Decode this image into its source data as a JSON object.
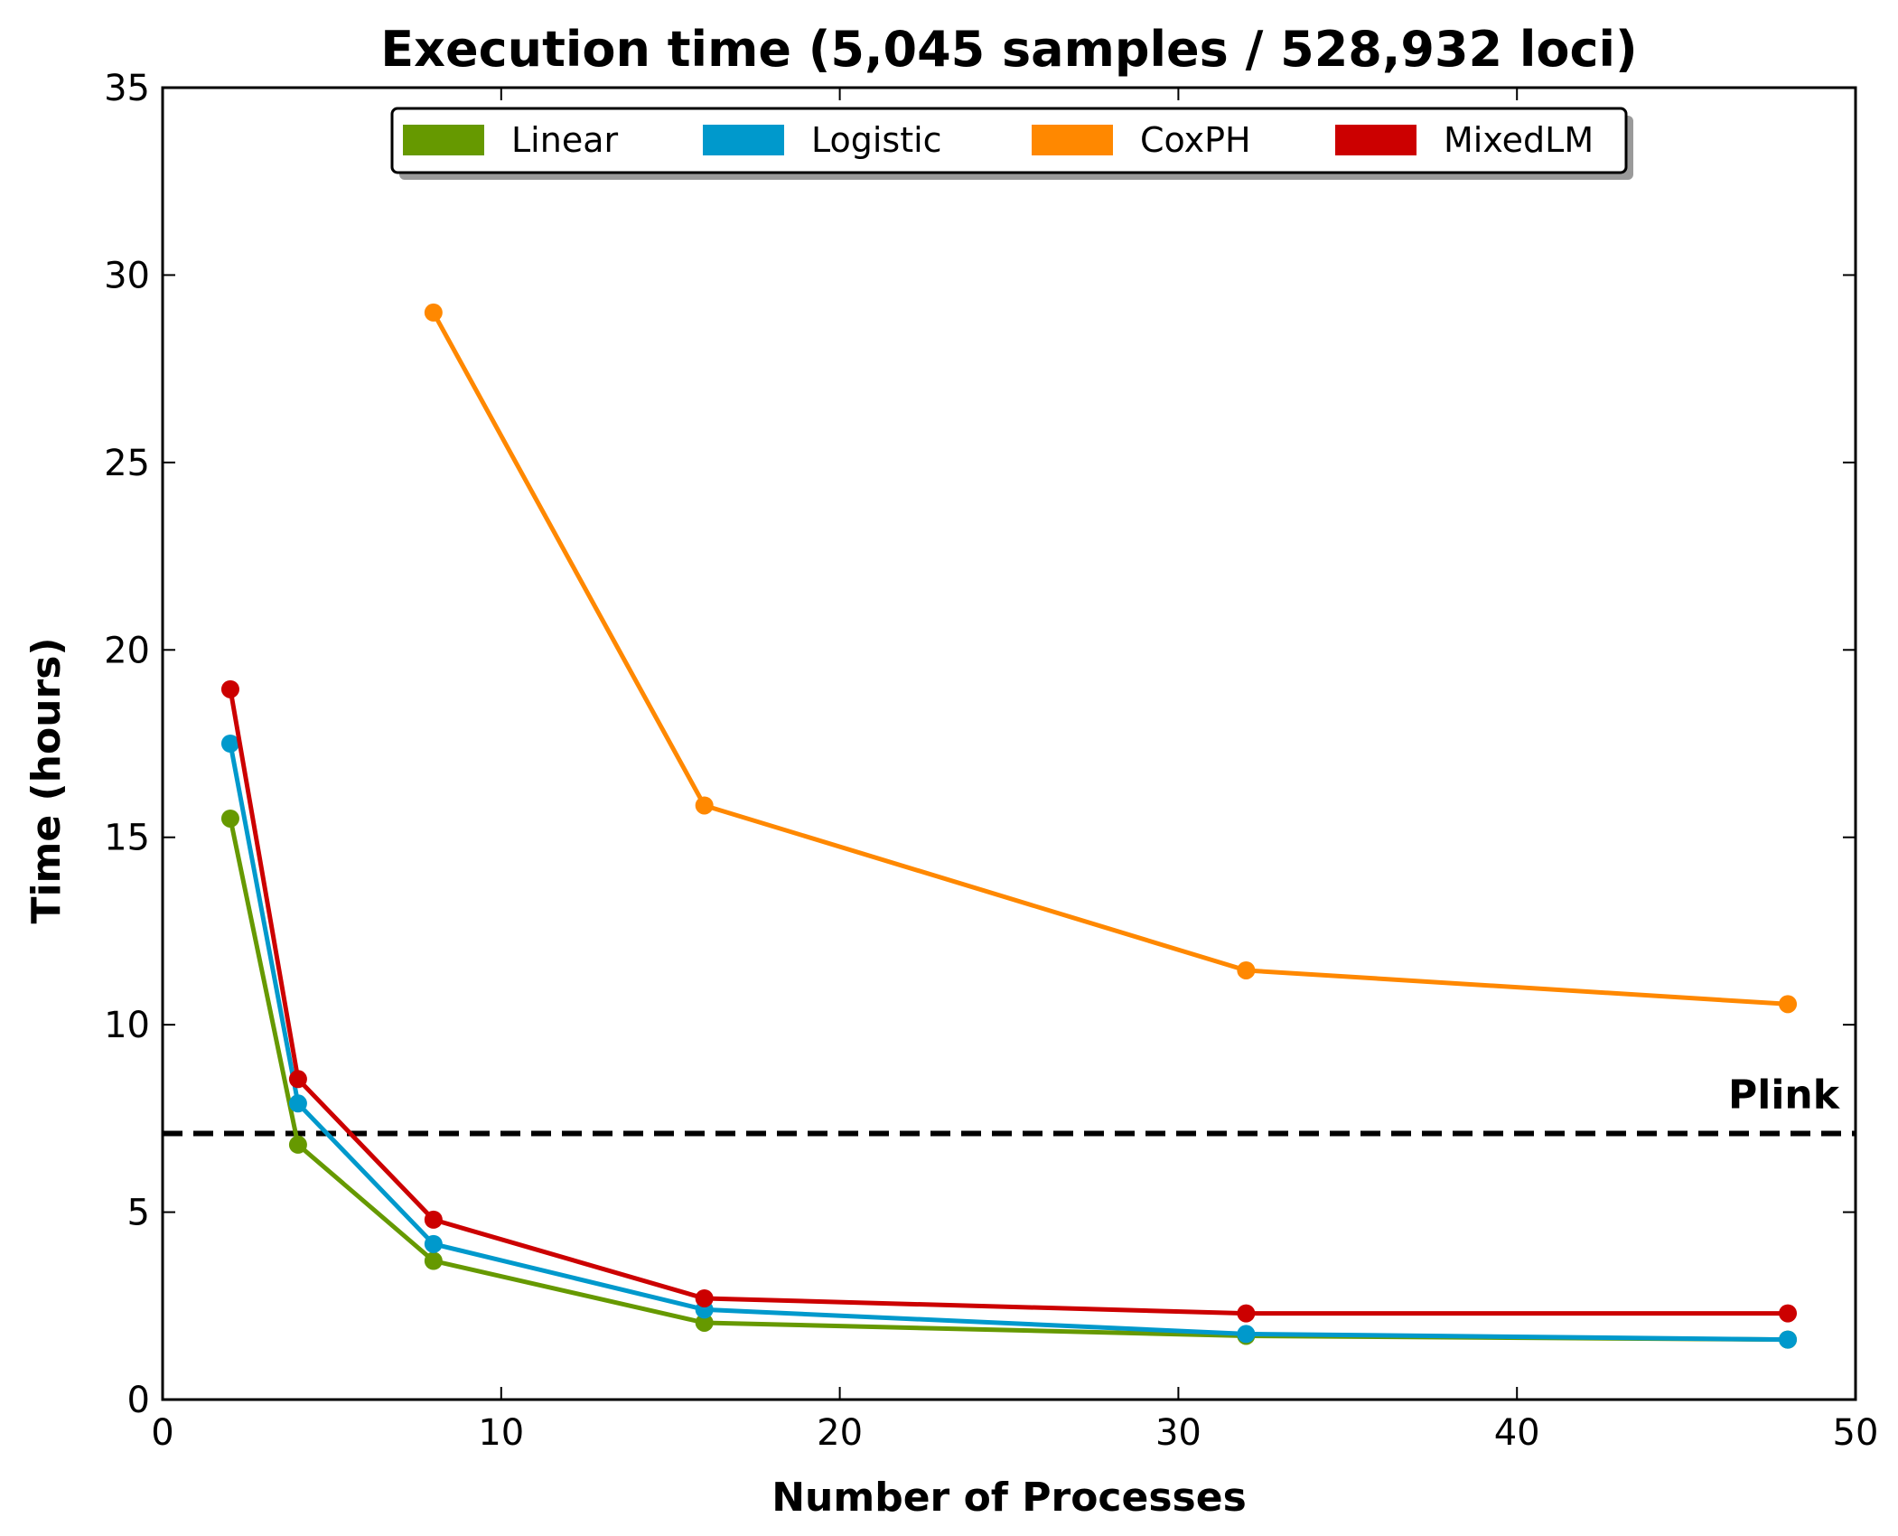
{
  "chart_data": {
    "type": "line",
    "title": "Execution time (5,045 samples / 528,932 loci)",
    "xlabel": "Number of Processes",
    "ylabel": "Time (hours)",
    "xlim": [
      0,
      50
    ],
    "ylim": [
      0,
      35
    ],
    "xticks": [
      0,
      10,
      20,
      30,
      40,
      50
    ],
    "yticks": [
      0,
      5,
      10,
      15,
      20,
      25,
      30,
      35
    ],
    "grid": false,
    "legend_position": "top-center",
    "series": [
      {
        "name": "Linear",
        "color": "#669900",
        "x": [
          2,
          4,
          8,
          16,
          32,
          48
        ],
        "y": [
          15.5,
          6.8,
          3.7,
          2.05,
          1.7,
          1.6
        ]
      },
      {
        "name": "Logistic",
        "color": "#0099cc",
        "x": [
          2,
          4,
          8,
          16,
          32,
          48
        ],
        "y": [
          17.5,
          7.9,
          4.15,
          2.4,
          1.75,
          1.6
        ]
      },
      {
        "name": "CoxPH",
        "color": "#ff8800",
        "x": [
          8,
          16,
          32,
          48
        ],
        "y": [
          29.0,
          15.85,
          11.45,
          10.55
        ]
      },
      {
        "name": "MixedLM",
        "color": "#cc0000",
        "x": [
          2,
          4,
          8,
          16,
          32,
          48
        ],
        "y": [
          18.95,
          8.55,
          4.8,
          2.7,
          2.3,
          2.3
        ]
      }
    ],
    "reference_line": {
      "label": "Plink",
      "y": 7.1,
      "style": "dashed",
      "color": "#000000"
    }
  }
}
